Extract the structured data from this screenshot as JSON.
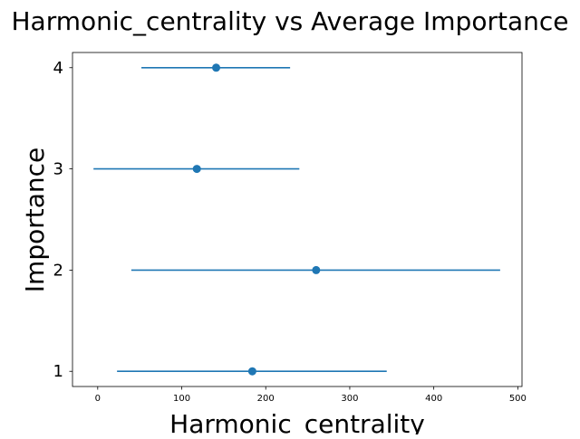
{
  "chart_data": {
    "type": "scatter",
    "title": "Harmonic_centrality vs Average Importance",
    "xlabel": "Harmonic_centrality",
    "ylabel": "Importance",
    "xlim": [
      -30,
      505
    ],
    "ylim": [
      0.85,
      4.15
    ],
    "xticks": [
      0,
      100,
      200,
      300,
      400,
      500
    ],
    "xtick_labels": [
      "0",
      "100",
      "200",
      "300",
      "400",
      "500"
    ],
    "yticks": [
      1,
      2,
      3,
      4
    ],
    "ytick_labels": [
      "1",
      "2",
      "3",
      "4"
    ],
    "grid": false,
    "color": "#1f77b4",
    "points": [
      {
        "y": 1,
        "x": 184,
        "xmin": 23,
        "xmax": 344
      },
      {
        "y": 2,
        "x": 260,
        "xmin": 40,
        "xmax": 479
      },
      {
        "y": 3,
        "x": 118,
        "xmin": -5,
        "xmax": 240
      },
      {
        "y": 4,
        "x": 141,
        "xmin": 52,
        "xmax": 229
      }
    ]
  }
}
